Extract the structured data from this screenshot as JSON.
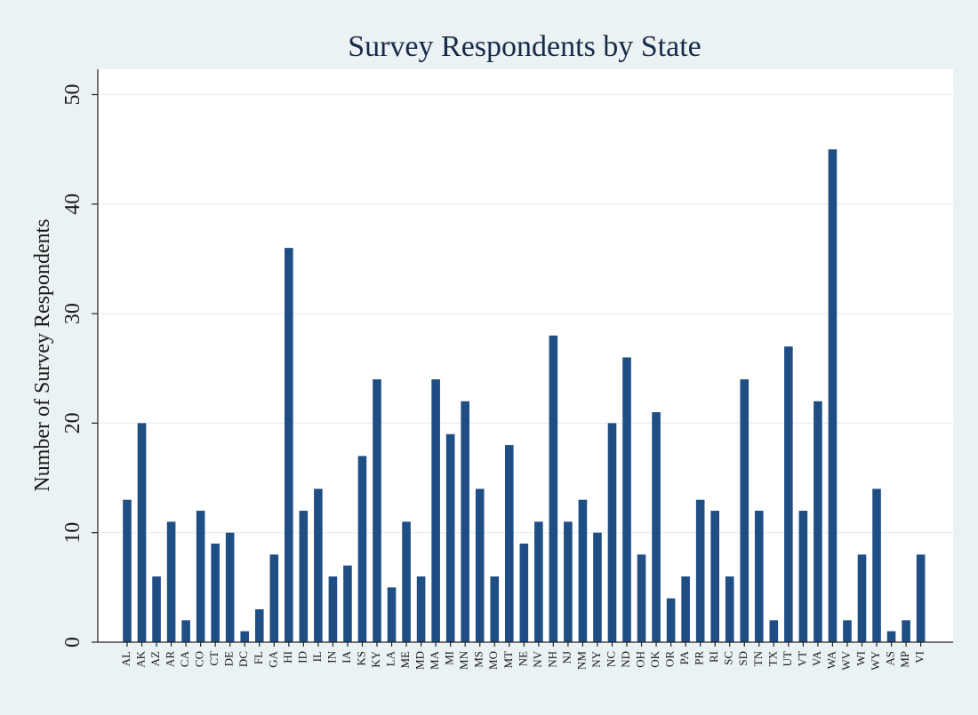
{
  "chart_data": {
    "type": "bar",
    "title": "Survey Respondents by State",
    "xlabel": "",
    "ylabel": "Number of Survey Respondents",
    "ylim": [
      0,
      52
    ],
    "yticks": [
      0,
      10,
      20,
      30,
      40,
      50
    ],
    "grid": true,
    "bar_color": "#1f4e85",
    "plot_background": "#ffffff",
    "page_background": "#eaf2f3",
    "categories": [
      "AL",
      "AK",
      "AZ",
      "AR",
      "CA",
      "CO",
      "CT",
      "DE",
      "DC",
      "FL",
      "GA",
      "HI",
      "ID",
      "IL",
      "IN",
      "IA",
      "KS",
      "KY",
      "LA",
      "ME",
      "MD",
      "MA",
      "MI",
      "MN",
      "MS",
      "MO",
      "MT",
      "NE",
      "NV",
      "NH",
      "NJ",
      "NM",
      "NY",
      "NC",
      "ND",
      "OH",
      "OK",
      "OR",
      "PA",
      "PR",
      "RI",
      "SC",
      "SD",
      "TN",
      "TX",
      "UT",
      "VT",
      "VA",
      "WA",
      "WV",
      "WI",
      "WY",
      "AS",
      "MP",
      "VI"
    ],
    "values": [
      13,
      20,
      6,
      11,
      2,
      12,
      9,
      10,
      1,
      3,
      8,
      36,
      12,
      14,
      6,
      7,
      17,
      24,
      5,
      11,
      6,
      24,
      19,
      22,
      14,
      6,
      18,
      9,
      11,
      28,
      11,
      13,
      10,
      20,
      26,
      8,
      21,
      4,
      6,
      13,
      12,
      6,
      24,
      12,
      2,
      27,
      12,
      22,
      45,
      2,
      8,
      14,
      1,
      2,
      8
    ]
  }
}
